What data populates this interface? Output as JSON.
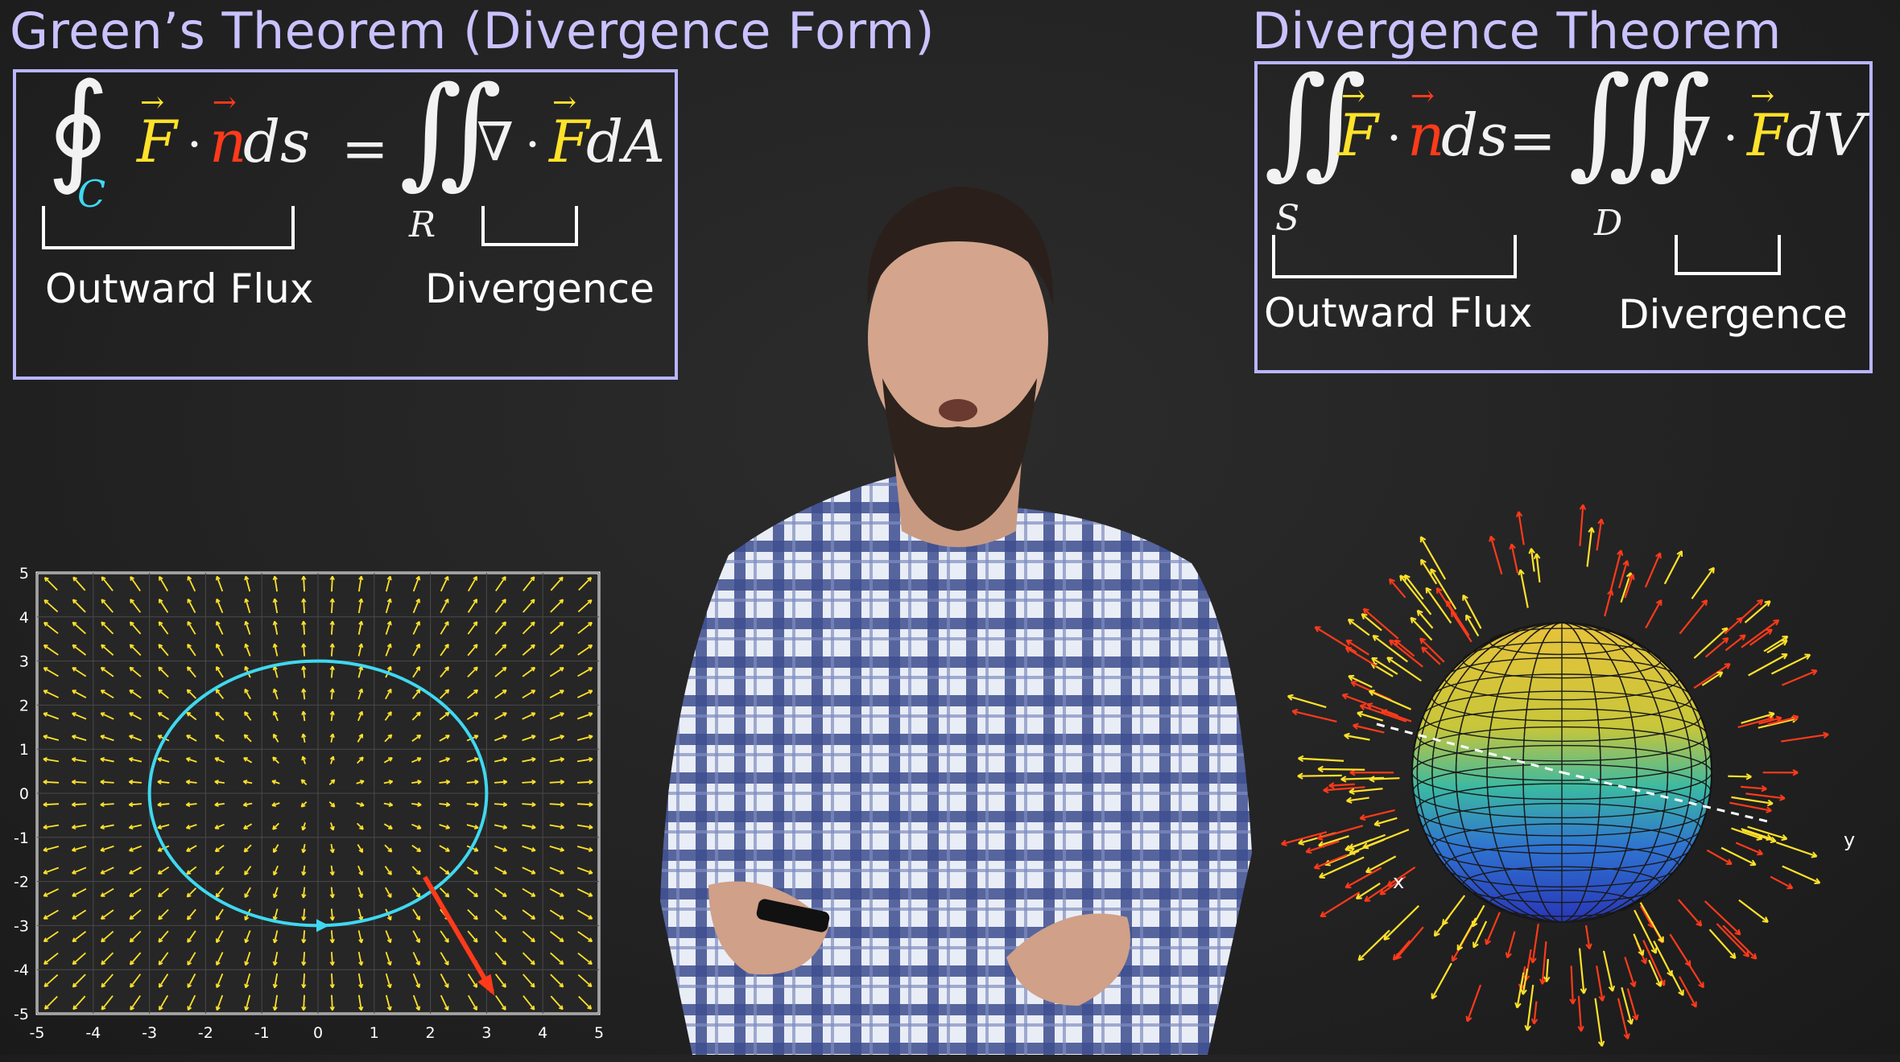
{
  "left_panel": {
    "title": "Green’s Theorem (Divergence Form)",
    "lhs_integral": "∮",
    "lhs_sub": "C",
    "F": "F",
    "dot": "·",
    "n": "n",
    "ds": "ds",
    "equals": "=",
    "rhs_integral": "∬",
    "rhs_sub": "R",
    "nabla": "∇",
    "dA": "dA",
    "label_flux": "Outward Flux",
    "label_div": "Divergence"
  },
  "right_panel": {
    "title": "Divergence Theorem",
    "lhs_integral": "∬",
    "lhs_sub": "S",
    "F": "F",
    "dot": "·",
    "n": "n",
    "ds": "ds",
    "equals": "=",
    "rhs_integral": "∭",
    "rhs_sub": "D",
    "nabla": "∇",
    "dV": "dV",
    "label_flux": "Outward Flux",
    "label_div": "Divergence"
  },
  "field_plot": {
    "x_ticks": [
      -5,
      -4,
      -3,
      -2,
      -1,
      0,
      1,
      2,
      3,
      4,
      5
    ],
    "y_ticks": [
      5,
      4,
      3,
      2,
      1,
      0,
      -1,
      -2,
      -3,
      -4,
      -5
    ],
    "curve_center": [
      0,
      0
    ],
    "curve_rx": 3,
    "curve_ry": 3,
    "normal_vector_from": [
      1.9,
      -1.9
    ],
    "normal_vector_to": [
      3.1,
      -4.5
    ]
  },
  "sphere_plot": {
    "axis_x_label": "x",
    "axis_y_label": "y"
  },
  "colors": {
    "accent_box": "#b9b5ff",
    "field_arrow": "#ffe22a",
    "normal_arrow": "#ff3a1a",
    "curve": "#3fd8f0"
  }
}
